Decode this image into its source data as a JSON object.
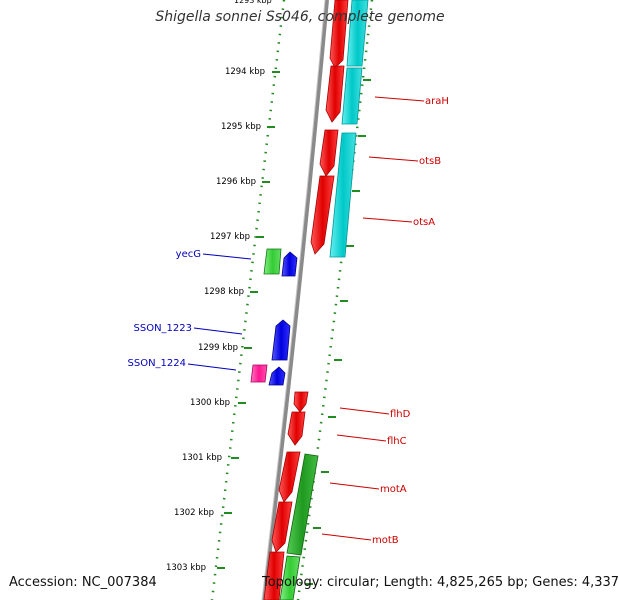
{
  "title": "Shigella sonnei Ss046, complete genome",
  "accession": "Accession: NC_007384",
  "topology": "Topology: circular; Length: 4,825,265 bp; Genes: 4,337",
  "colors": {
    "backbone": "#8a8a8a",
    "tick": "#228b22",
    "forward_gene": "#ff0000",
    "reverse_gene": "#0000ee",
    "forward_label": "#cc0000",
    "reverse_label": "#0000bb",
    "rna_cyan": "#00cccc",
    "rna_green": "#22aa22",
    "pseudo_pink": "#ff1493"
  },
  "kbp_ticks": [
    "1294 kbp",
    "1295 kbp",
    "1296 kbp",
    "1297 kbp",
    "1298 kbp",
    "1299 kbp",
    "1300 kbp",
    "1301 kbp",
    "1302 kbp",
    "1303 kbp"
  ],
  "forward_labels": [
    "araH",
    "otsB",
    "otsA",
    "flhD",
    "flhC",
    "motA",
    "motB"
  ],
  "reverse_labels": [
    "yecG",
    "SSON_1223",
    "SSON_1224"
  ]
}
